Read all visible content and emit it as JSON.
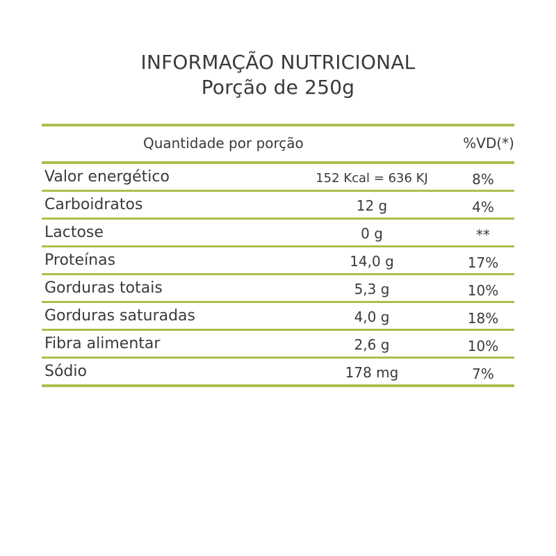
{
  "title": {
    "line1": "INFORMAÇÃO NUTRICIONAL",
    "line2": "Porção de 250g"
  },
  "table": {
    "header": {
      "quantity": "Quantidade por porção",
      "vd": "%VD(*)"
    },
    "rows": [
      {
        "name": "Valor energético",
        "amount": "152 Kcal = 636 KJ",
        "vd": "8%"
      },
      {
        "name": "Carboidratos",
        "amount": "12 g",
        "vd": "4%"
      },
      {
        "name": "Lactose",
        "amount": "0 g",
        "vd": "**"
      },
      {
        "name": "Proteínas",
        "amount": "14,0 g",
        "vd": "17%"
      },
      {
        "name": "Gorduras totais",
        "amount": "5,3 g",
        "vd": "10%"
      },
      {
        "name": "Gorduras saturadas",
        "amount": "4,0 g",
        "vd": "18%"
      },
      {
        "name": "Fibra alimentar",
        "amount": "2,6 g",
        "vd": "10%"
      },
      {
        "name": "Sódio",
        "amount": "178 mg",
        "vd": "7%"
      }
    ]
  },
  "colors": {
    "rule": "#a8c04e",
    "text": "#3a3a3a",
    "background": "#ffffff"
  }
}
